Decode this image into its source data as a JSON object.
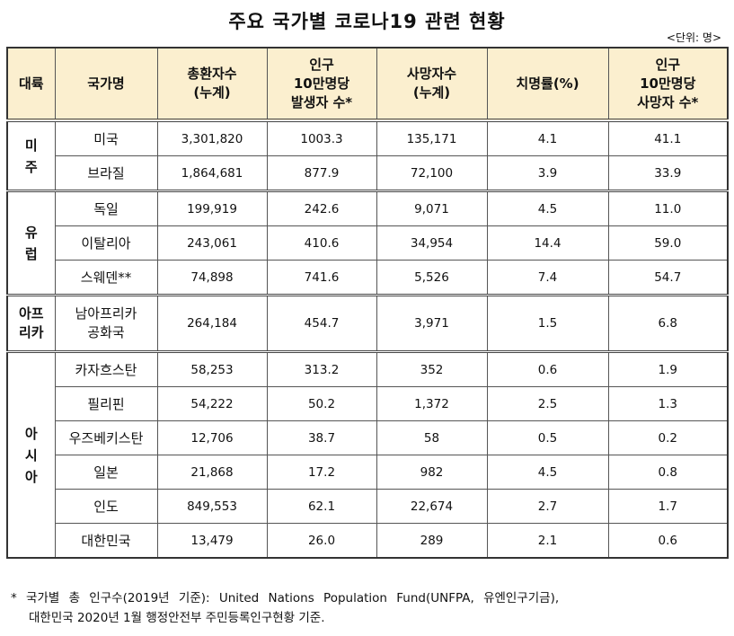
{
  "title": "주요 국가별 코로나19 관련 현황",
  "unit": "<단위: 명>",
  "headers": {
    "continent": "대륙",
    "country": "국가명",
    "cases": [
      "총환자수",
      "(누계)"
    ],
    "cases_per": [
      "인구",
      "10만명당",
      "발생자 수*"
    ],
    "deaths": [
      "사망자수",
      "(누계)"
    ],
    "cfr": "치명률(%)",
    "deaths_per": [
      "인구",
      "10만명당",
      "사망자 수*"
    ]
  },
  "groups": [
    {
      "continent": [
        "미",
        "주"
      ],
      "rows": [
        {
          "country": "미국",
          "cases": "3,301,820",
          "cases_per": "1003.3",
          "deaths": "135,171",
          "cfr": "4.1",
          "deaths_per": "41.1"
        },
        {
          "country": "브라질",
          "cases": "1,864,681",
          "cases_per": "877.9",
          "deaths": "72,100",
          "cfr": "3.9",
          "deaths_per": "33.9"
        }
      ]
    },
    {
      "continent": [
        "유",
        "럽"
      ],
      "rows": [
        {
          "country": "독일",
          "cases": "199,919",
          "cases_per": "242.6",
          "deaths": "9,071",
          "cfr": "4.5",
          "deaths_per": "11.0"
        },
        {
          "country": "이탈리아",
          "cases": "243,061",
          "cases_per": "410.6",
          "deaths": "34,954",
          "cfr": "14.4",
          "deaths_per": "59.0"
        },
        {
          "country": "스웨덴**",
          "cases": "74,898",
          "cases_per": "741.6",
          "deaths": "5,526",
          "cfr": "7.4",
          "deaths_per": "54.7"
        }
      ]
    },
    {
      "continent": [
        "아프",
        "리카"
      ],
      "rows": [
        {
          "country": [
            "남아프리카",
            "공화국"
          ],
          "cases": "264,184",
          "cases_per": "454.7",
          "deaths": "3,971",
          "cfr": "1.5",
          "deaths_per": "6.8"
        }
      ]
    },
    {
      "continent": [
        "아",
        "시",
        "아"
      ],
      "rows": [
        {
          "country": "카자흐스탄",
          "cases": "58,253",
          "cases_per": "313.2",
          "deaths": "352",
          "cfr": "0.6",
          "deaths_per": "1.9"
        },
        {
          "country": "필리핀",
          "cases": "54,222",
          "cases_per": "50.2",
          "deaths": "1,372",
          "cfr": "2.5",
          "deaths_per": "1.3"
        },
        {
          "country": "우즈베키스탄",
          "cases": "12,706",
          "cases_per": "38.7",
          "deaths": "58",
          "cfr": "0.5",
          "deaths_per": "0.2"
        },
        {
          "country": "일본",
          "cases": "21,868",
          "cases_per": "17.2",
          "deaths": "982",
          "cfr": "4.5",
          "deaths_per": "0.8"
        },
        {
          "country": "인도",
          "cases": "849,553",
          "cases_per": "62.1",
          "deaths": "22,674",
          "cfr": "2.7",
          "deaths_per": "1.7"
        },
        {
          "country": "대한민국",
          "cases": "13,479",
          "cases_per": "26.0",
          "deaths": "289",
          "cfr": "2.1",
          "deaths_per": "0.6"
        }
      ]
    }
  ],
  "footnote": [
    "* 국가별 총 인구수(2019년 기준): United Nations Population Fund(UNFPA, 유엔인구기금),",
    "대한민국 2020년 1월 행정안전부 주민등록인구현황 기준."
  ]
}
